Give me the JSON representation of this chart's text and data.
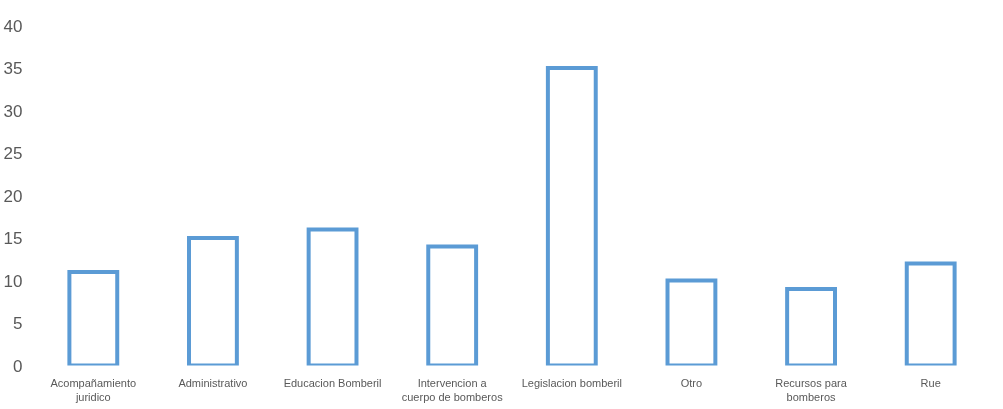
{
  "chart_data": {
    "type": "bar",
    "categories": [
      "Acompañamiento juridico",
      "Administrativo",
      "Educacion Bomberil",
      "Intervencion a cuerpo de bomberos",
      "Legislacion bomberil",
      "Otro",
      "Recursos para bomberos",
      "Rue"
    ],
    "values": [
      11,
      15,
      16,
      14,
      35,
      10,
      9,
      12
    ],
    "color": "#5b9bd5",
    "ylim": [
      0,
      40
    ],
    "yticks": [
      0,
      5,
      10,
      15,
      20,
      25,
      30,
      35,
      40
    ],
    "grid": false
  }
}
